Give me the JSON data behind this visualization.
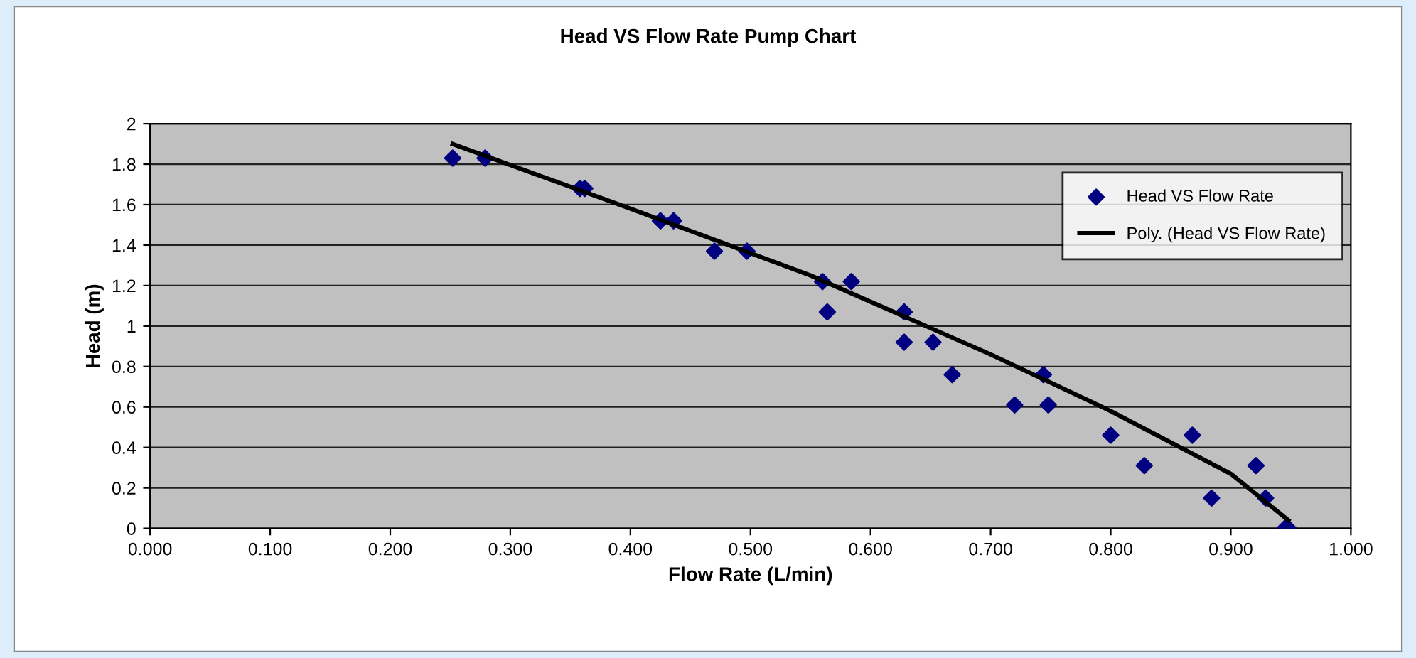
{
  "chart_data": {
    "type": "scatter",
    "title": "Head VS Flow Rate Pump Chart",
    "xlabel": "Flow Rate (L/min)",
    "ylabel": "Head (m)",
    "xlim": [
      0,
      1
    ],
    "ylim": [
      0,
      2
    ],
    "xticks": [
      {
        "value": 0,
        "label": "0.000"
      },
      {
        "value": 0.1,
        "label": "0.100"
      },
      {
        "value": 0.2,
        "label": "0.200"
      },
      {
        "value": 0.3,
        "label": "0.300"
      },
      {
        "value": 0.4,
        "label": "0.400"
      },
      {
        "value": 0.5,
        "label": "0.500"
      },
      {
        "value": 0.6,
        "label": "0.600"
      },
      {
        "value": 0.7,
        "label": "0.700"
      },
      {
        "value": 0.8,
        "label": "0.800"
      },
      {
        "value": 0.9,
        "label": "0.900"
      },
      {
        "value": 1,
        "label": "1.000"
      }
    ],
    "yticks": [
      0,
      0.2,
      0.4,
      0.6,
      0.8,
      1,
      1.2,
      1.4,
      1.6,
      1.8,
      2
    ],
    "grid": "y",
    "legend": "top right",
    "series": [
      {
        "name": "Head VS Flow Rate",
        "marker": "diamond",
        "color": "#000080",
        "x": [
          0.252,
          0.279,
          0.358,
          0.362,
          0.425,
          0.436,
          0.47,
          0.497,
          0.56,
          0.564,
          0.584,
          0.628,
          0.628,
          0.652,
          0.668,
          0.72,
          0.744,
          0.748,
          0.8,
          0.828,
          0.868,
          0.884,
          0.921,
          0.929,
          0.945,
          0.948
        ],
        "values": [
          1.83,
          1.83,
          1.68,
          1.68,
          1.52,
          1.52,
          1.37,
          1.37,
          1.22,
          1.07,
          1.22,
          1.07,
          0.92,
          0.92,
          0.76,
          0.61,
          0.76,
          0.61,
          0.46,
          0.31,
          0.46,
          0.15,
          0.31,
          0.15,
          0.0,
          0.0
        ]
      },
      {
        "name": "Poly. (Head VS Flow Rate)",
        "type": "line",
        "marker": "none",
        "line_style": "solid",
        "color": "#000000",
        "x": [
          0.252,
          0.4,
          0.55,
          0.7,
          0.8,
          0.9,
          0.948
        ],
        "values": [
          1.9,
          1.58,
          1.25,
          0.86,
          0.58,
          0.27,
          0.04
        ]
      }
    ]
  }
}
